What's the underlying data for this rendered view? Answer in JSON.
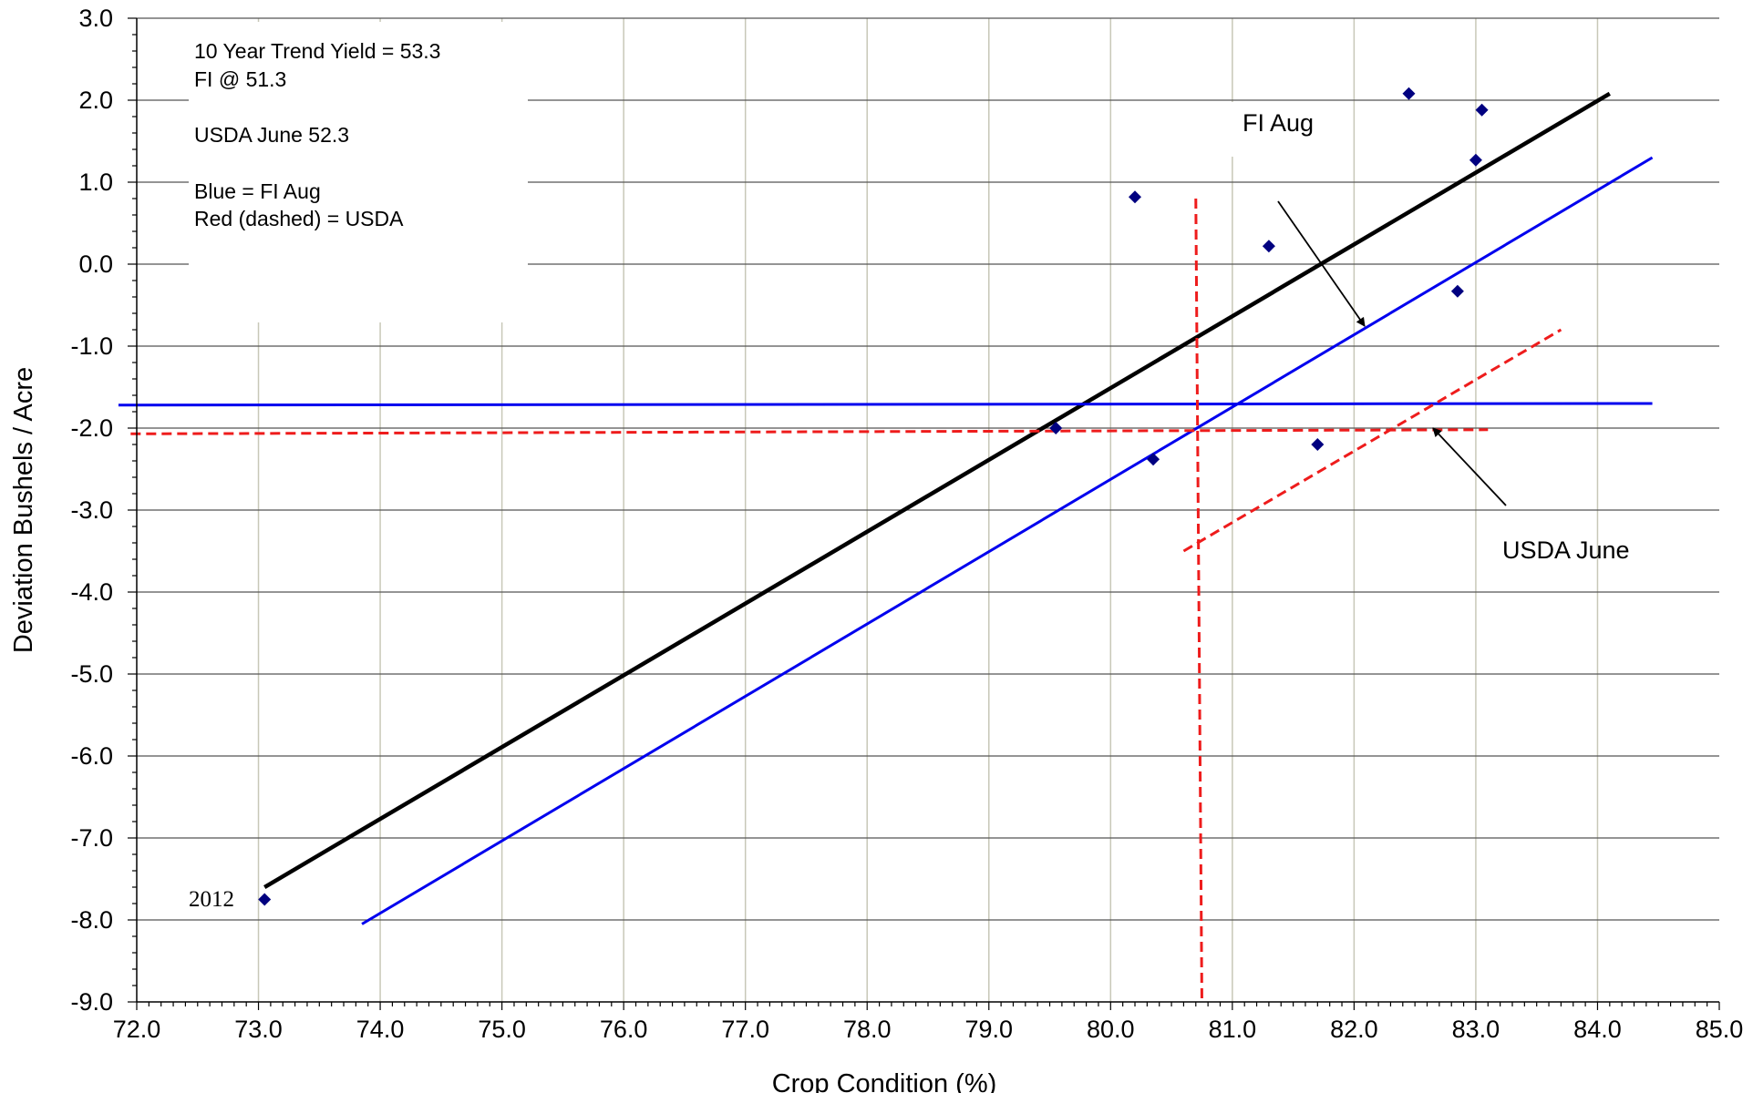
{
  "chart_data": {
    "type": "scatter",
    "xlabel": "Crop Condition (%)",
    "ylabel": "Deviation Bushels / Acre",
    "xlim": [
      72.0,
      85.0
    ],
    "ylim": [
      -9.0,
      3.0
    ],
    "x_ticks": [
      "72.0",
      "73.0",
      "74.0",
      "75.0",
      "76.0",
      "77.0",
      "78.0",
      "79.0",
      "80.0",
      "81.0",
      "82.0",
      "83.0",
      "84.0",
      "85.0"
    ],
    "y_ticks": [
      "3.0",
      "2.0",
      "1.0",
      "0.0",
      "-1.0",
      "-2.0",
      "-3.0",
      "-4.0",
      "-5.0",
      "-6.0",
      "-7.0",
      "-8.0",
      "-9.0"
    ],
    "grid": "on",
    "points": [
      {
        "x": 73.05,
        "y": -7.75,
        "label": "2012"
      },
      {
        "x": 79.55,
        "y": -2.0
      },
      {
        "x": 80.2,
        "y": 0.82
      },
      {
        "x": 80.35,
        "y": -2.38
      },
      {
        "x": 81.3,
        "y": 0.22
      },
      {
        "x": 81.7,
        "y": -2.2
      },
      {
        "x": 82.45,
        "y": 2.08
      },
      {
        "x": 82.85,
        "y": -0.33
      },
      {
        "x": 83.0,
        "y": 1.27
      },
      {
        "x": 83.05,
        "y": 1.88
      }
    ],
    "lines": [
      {
        "name": "trend",
        "color": "#000000",
        "style": "solid",
        "x": [
          73.05,
          84.1
        ],
        "y": [
          -7.6,
          2.08
        ]
      },
      {
        "name": "FI Aug",
        "color": "#0000ee",
        "style": "solid",
        "x": [
          73.85,
          84.45
        ],
        "y": [
          -8.05,
          1.3
        ]
      },
      {
        "name": "FI Aug level",
        "color": "#0000ee",
        "style": "solid",
        "x": [
          71.85,
          84.45
        ],
        "y": [
          -1.72,
          -1.7
        ]
      },
      {
        "name": "USDA level",
        "color": "#ee1c1c",
        "style": "dashed",
        "x": [
          71.95,
          83.1
        ],
        "y": [
          -2.07,
          -2.02
        ]
      },
      {
        "name": "USDA condition",
        "color": "#ee1c1c",
        "style": "dashed",
        "x": [
          80.7,
          80.75
        ],
        "y": [
          0.8,
          -9.0
        ]
      },
      {
        "name": "USDA June",
        "color": "#ee1c1c",
        "style": "dashed",
        "x": [
          80.6,
          83.7
        ],
        "y": [
          -3.5,
          -0.8
        ]
      }
    ],
    "notes": [
      "10 Year Trend Yield =  53.3",
      "FI @ 51.3",
      "USDA June 52.3",
      "Blue = FI Aug",
      "Red (dashed) = USDA"
    ],
    "annotations": [
      {
        "text": "FI Aug",
        "x": 82.3,
        "y": 1.65,
        "arrow_from": [
          81.35,
          0.77
        ],
        "arrow_to": [
          82.1,
          -0.75
        ]
      },
      {
        "text": "USDA June",
        "x": 83.1,
        "y": -3.5,
        "arrow_from": [
          83.55,
          -2.93
        ],
        "arrow_to": [
          82.95,
          -2.0
        ]
      }
    ],
    "colors": {
      "points": "#000080",
      "grid": "#c8c8b8",
      "trend": "#000000",
      "fi": "#0000ee",
      "usda": "#ee1c1c"
    }
  }
}
